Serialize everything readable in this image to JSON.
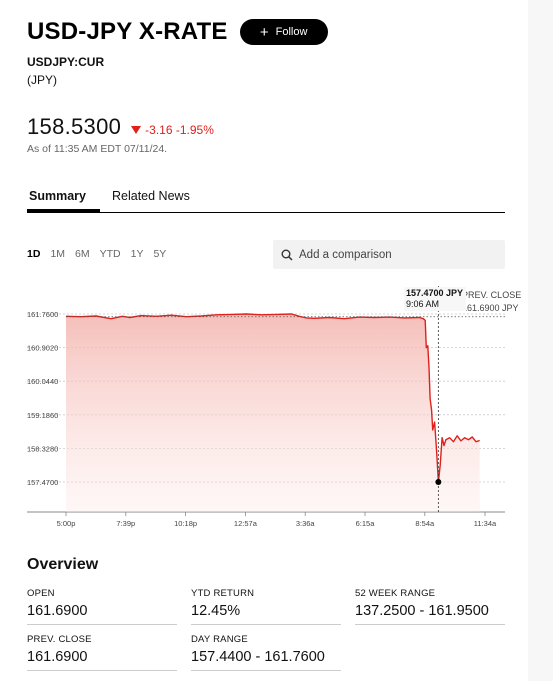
{
  "header": {
    "title": "USD-JPY X-RATE",
    "follow_label": "Follow",
    "ticker": "USDJPY:CUR",
    "currency": "(JPY)"
  },
  "quote": {
    "price": "158.5300",
    "change": "-3.16",
    "change_pct": "-1.95%",
    "as_of": "As of 11:35 AM EDT 07/11/24.",
    "down_color": "#e0201b"
  },
  "tabs": [
    {
      "label": "Summary",
      "active": true
    },
    {
      "label": "Related News",
      "active": false
    }
  ],
  "ranges": [
    {
      "label": "1D",
      "active": true
    },
    {
      "label": "1M",
      "active": false
    },
    {
      "label": "6M",
      "active": false
    },
    {
      "label": "YTD",
      "active": false
    },
    {
      "label": "1Y",
      "active": false
    },
    {
      "label": "5Y",
      "active": false
    }
  ],
  "comparison": {
    "placeholder": "Add a comparison",
    "icon": "search-icon"
  },
  "tooltip": {
    "value": "157.4700 JPY",
    "time": "9:06 AM"
  },
  "prev_close": {
    "label": "PREV. CLOSE",
    "value": "161.6900 JPY"
  },
  "chart_data": {
    "type": "area",
    "y_ticks": [
      161.76,
      160.902,
      160.044,
      159.186,
      158.328,
      157.47
    ],
    "y_tick_labels": [
      "161.7600",
      "160.9020",
      "160.0440",
      "159.1860",
      "158.3280",
      "157.4700"
    ],
    "ylim": [
      157.0,
      162.0
    ],
    "x_tick_labels": [
      "5:00p",
      "7:39p",
      "10:18p",
      "12:57a",
      "3:36a",
      "6:15a",
      "8:54a",
      "11:34a"
    ],
    "xlim": [
      0,
      1114
    ],
    "x_ticks": [
      0,
      159,
      318,
      477,
      636,
      795,
      954,
      1114
    ],
    "grid": true,
    "series": [
      {
        "x": [
          0,
          40,
          80,
          120,
          150,
          170,
          200,
          240,
          280,
          320,
          360,
          400,
          440,
          480,
          520,
          560,
          600,
          620,
          640,
          660,
          700,
          740,
          780,
          820,
          860,
          900,
          940,
          950,
          955,
          958,
          962,
          965,
          968,
          972,
          975,
          980,
          985,
          990,
          995,
          1000,
          1005,
          1010,
          1020,
          1030,
          1040,
          1050,
          1060,
          1070,
          1080,
          1090,
          1100
        ],
        "y": [
          161.7,
          161.69,
          161.71,
          161.64,
          161.7,
          161.67,
          161.72,
          161.7,
          161.73,
          161.69,
          161.71,
          161.74,
          161.75,
          161.76,
          161.74,
          161.75,
          161.76,
          161.7,
          161.66,
          161.65,
          161.67,
          161.64,
          161.68,
          161.67,
          161.68,
          161.66,
          161.67,
          161.64,
          161.6,
          160.9,
          160.95,
          160.4,
          159.6,
          159.3,
          158.8,
          159.0,
          158.3,
          157.47,
          157.9,
          158.6,
          158.4,
          158.55,
          158.6,
          158.5,
          158.65,
          158.52,
          158.6,
          158.55,
          158.62,
          158.5,
          158.53
        ]
      }
    ],
    "prev_close": 161.69,
    "crosshair_x": 990,
    "line_color": "#e0201b"
  },
  "overview": {
    "title": "Overview",
    "stats": [
      {
        "label": "OPEN",
        "value": "161.6900"
      },
      {
        "label": "YTD RETURN",
        "value": "12.45%"
      },
      {
        "label": "52 WEEK RANGE",
        "value": "137.2500 - 161.9500"
      },
      {
        "label": "PREV. CLOSE",
        "value": "161.6900"
      },
      {
        "label": "DAY RANGE",
        "value": "157.4400 - 161.7600"
      }
    ]
  }
}
